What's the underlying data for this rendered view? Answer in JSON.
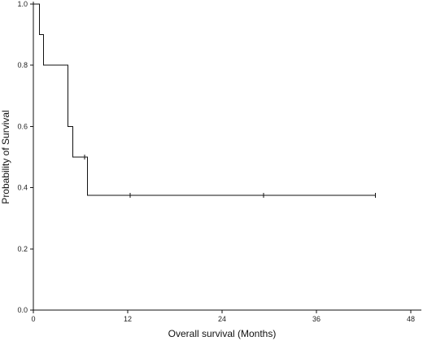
{
  "chart_data": {
    "type": "line",
    "subtype": "kaplan-meier-step",
    "title": "",
    "xlabel": "Overall survival (Months)",
    "ylabel": "Probability of Survival",
    "xlim": [
      0,
      48
    ],
    "ylim": [
      0,
      1
    ],
    "x_ticks": [
      0,
      12,
      24,
      36,
      48
    ],
    "y_ticks": [
      0.0,
      0.2,
      0.4,
      0.6,
      0.8,
      1.0
    ],
    "grid": false,
    "legend": "none",
    "series": [
      {
        "step_points": [
          {
            "x": 0,
            "y": 1.0
          },
          {
            "x": 0.8,
            "y": 0.9
          },
          {
            "x": 1.3,
            "y": 0.8
          },
          {
            "x": 4.4,
            "y": 0.6
          },
          {
            "x": 5.0,
            "y": 0.5
          },
          {
            "x": 6.9,
            "y": 0.375
          },
          {
            "x": 43.5,
            "y": 0.375
          }
        ],
        "censored": [
          {
            "x": 6.5,
            "y": 0.5
          },
          {
            "x": 12.3,
            "y": 0.375
          },
          {
            "x": 29.3,
            "y": 0.375
          },
          {
            "x": 43.5,
            "y": 0.375
          }
        ]
      }
    ]
  }
}
